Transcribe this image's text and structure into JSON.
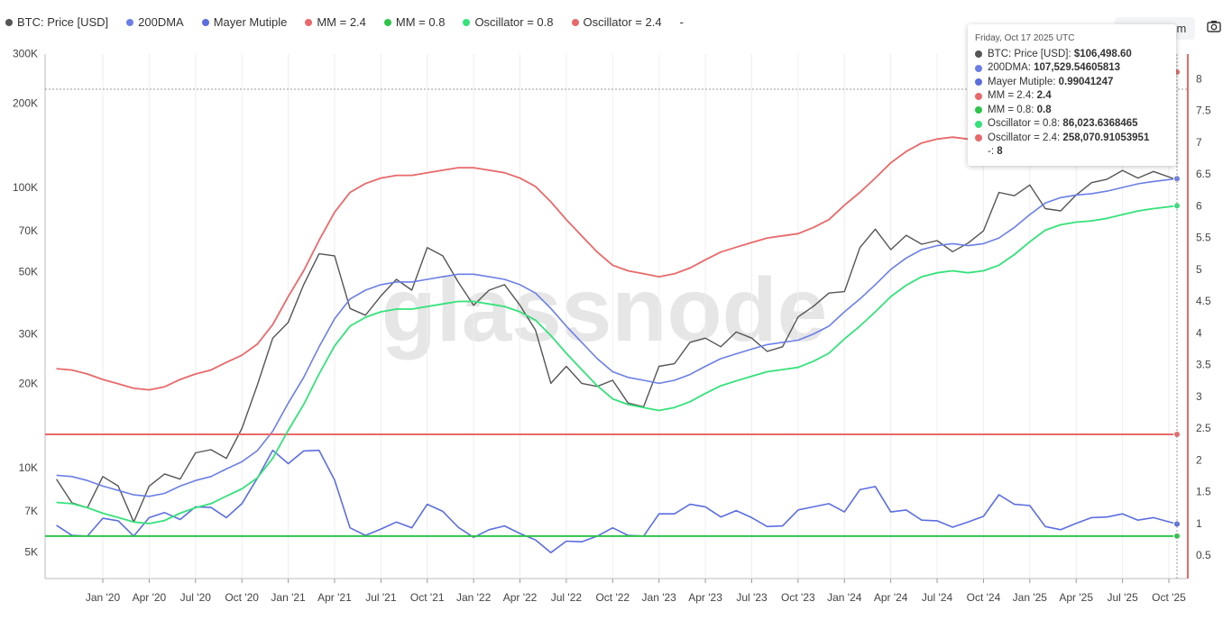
{
  "toolbar": {
    "reset_zoom": "Reset zoom",
    "camera_icon": "camera-icon"
  },
  "watermark": "glassnode",
  "legend": [
    {
      "label": "BTC: Price [USD]",
      "color": "#555555"
    },
    {
      "label": "200DMA",
      "color": "#6b7fe6"
    },
    {
      "label": "Mayer Mutiple",
      "color": "#5b6ee0"
    },
    {
      "label": "MM = 2.4",
      "color": "#e8696a"
    },
    {
      "label": "MM = 0.8",
      "color": "#2ec44a"
    },
    {
      "label": "Oscillator = 0.8",
      "color": "#34e27a"
    },
    {
      "label": "Oscillator = 2.4",
      "color": "#e8696a"
    },
    {
      "label": "-",
      "color": "#ffffff"
    }
  ],
  "tooltip": {
    "date": "Friday, Oct 17 2025 UTC",
    "rows": [
      {
        "label": "BTC: Price [USD]: ",
        "value": "$106,498.60",
        "color": "#555555"
      },
      {
        "label": "200DMA: ",
        "value": "107,529.54605813",
        "color": "#6b7fe6"
      },
      {
        "label": "Mayer Mutiple: ",
        "value": "0.99041247",
        "color": "#5b6ee0"
      },
      {
        "label": "MM = 2.4: ",
        "value": "2.4",
        "color": "#e8696a"
      },
      {
        "label": "MM = 0.8: ",
        "value": "0.8",
        "color": "#2ec44a"
      },
      {
        "label": "Oscillator = 0.8: ",
        "value": "86,023.6368465",
        "color": "#34e27a"
      },
      {
        "label": "Oscillator = 2.4: ",
        "value": "258,070.91053951",
        "color": "#e8696a"
      },
      {
        "label": "-: ",
        "value": "8",
        "color": null
      }
    ]
  },
  "chart_data": {
    "type": "line",
    "left_axis": {
      "scale": "log",
      "ticks": [
        "5K",
        "7K",
        "10K",
        "20K",
        "30K",
        "50K",
        "70K",
        "100K",
        "200K",
        "300K"
      ],
      "tick_values": [
        5000,
        7000,
        10000,
        20000,
        30000,
        50000,
        70000,
        100000,
        200000,
        300000
      ],
      "range": [
        4500,
        300000
      ]
    },
    "right_axis": {
      "scale": "linear",
      "ticks": [
        "0.5",
        "1",
        "1.5",
        "2",
        "2.5",
        "3",
        "3.5",
        "4",
        "4.5",
        "5",
        "5.5",
        "6",
        "6.5",
        "7",
        "7.5",
        "8"
      ],
      "range": [
        0.3,
        8.4
      ]
    },
    "x_ticks": [
      [
        "Jan '20",
        "2020-01"
      ],
      [
        "Apr '20",
        "2020-04"
      ],
      [
        "Jul '20",
        "2020-07"
      ],
      [
        "Oct '20",
        "2020-10"
      ],
      [
        "Jan '21",
        "2021-01"
      ],
      [
        "Apr '21",
        "2021-04"
      ],
      [
        "Jul '21",
        "2021-07"
      ],
      [
        "Oct '21",
        "2021-10"
      ],
      [
        "Jan '22",
        "2022-01"
      ],
      [
        "Apr '22",
        "2022-04"
      ],
      [
        "Jul '22",
        "2022-07"
      ],
      [
        "Oct '22",
        "2022-10"
      ],
      [
        "Jan '23",
        "2023-01"
      ],
      [
        "Apr '23",
        "2023-04"
      ],
      [
        "Jul '23",
        "2023-07"
      ],
      [
        "Oct '23",
        "2023-10"
      ],
      [
        "Jan '24",
        "2024-01"
      ],
      [
        "Apr '24",
        "2024-04"
      ],
      [
        "Jul '24",
        "2024-07"
      ],
      [
        "Oct '24",
        "2024-10"
      ],
      [
        "Jan '25",
        "2025-01"
      ],
      [
        "Apr '25",
        "2025-04"
      ],
      [
        "Jul '25",
        "2025-07"
      ],
      [
        "Oct '25",
        "2025-10"
      ]
    ],
    "x_start": "2019-10",
    "series": [
      {
        "name": "BTC: Price [USD]",
        "axis": "left",
        "color": "#555555",
        "values": [
          9100,
          7500,
          7200,
          9300,
          8600,
          6400,
          8600,
          9500,
          9100,
          11300,
          11600,
          10800,
          13800,
          19700,
          29000,
          33000,
          45000,
          58000,
          57000,
          37000,
          35000,
          41000,
          47000,
          43000,
          61000,
          57000,
          46000,
          38000,
          43000,
          45000,
          38000,
          31000,
          20000,
          23000,
          20000,
          19500,
          20500,
          17000,
          16500,
          23000,
          23500,
          28000,
          29000,
          27000,
          30500,
          29000,
          26000,
          27000,
          34500,
          37700,
          42000,
          42500,
          61000,
          71000,
          60000,
          67500,
          62700,
          64600,
          59000,
          63300,
          70000,
          96000,
          93400,
          102000,
          84000,
          82500,
          94000,
          104000,
          107000,
          115000,
          108000,
          114000,
          106498.6
        ]
      },
      {
        "name": "200DMA",
        "axis": "left",
        "color": "#6b7fe6",
        "values": [
          9400,
          9300,
          9000,
          8600,
          8300,
          8000,
          7900,
          8100,
          8600,
          9000,
          9300,
          9900,
          10500,
          11500,
          13500,
          17000,
          21000,
          27000,
          34000,
          40000,
          43000,
          45000,
          46000,
          46000,
          47000,
          48000,
          49000,
          49000,
          48000,
          47000,
          45000,
          42000,
          37000,
          32000,
          28000,
          24500,
          22000,
          21000,
          20500,
          20000,
          20500,
          21500,
          23000,
          24500,
          25500,
          26500,
          27500,
          28000,
          28500,
          30000,
          32000,
          36000,
          40000,
          45000,
          51000,
          56000,
          60000,
          62000,
          63000,
          62000,
          63000,
          66000,
          72000,
          80000,
          88000,
          92000,
          94000,
          95000,
          97000,
          100000,
          103000,
          105000,
          107529.55
        ]
      },
      {
        "name": "Mayer Mutiple",
        "axis": "right",
        "color": "#5b6ee0",
        "values": [
          0.97,
          0.81,
          0.8,
          1.08,
          1.04,
          0.8,
          1.09,
          1.17,
          1.06,
          1.26,
          1.25,
          1.09,
          1.31,
          1.71,
          2.15,
          1.94,
          2.14,
          2.15,
          1.68,
          0.93,
          0.81,
          0.91,
          1.02,
          0.93,
          1.3,
          1.19,
          0.94,
          0.78,
          0.9,
          0.96,
          0.84,
          0.74,
          0.54,
          0.72,
          0.71,
          0.8,
          0.93,
          0.81,
          0.8,
          1.15,
          1.15,
          1.3,
          1.26,
          1.1,
          1.2,
          1.09,
          0.95,
          0.96,
          1.21,
          1.26,
          1.31,
          1.18,
          1.53,
          1.58,
          1.18,
          1.21,
          1.05,
          1.04,
          0.94,
          1.02,
          1.11,
          1.45,
          1.3,
          1.28,
          0.95,
          0.9,
          1.0,
          1.09,
          1.1,
          1.15,
          1.05,
          1.09,
          0.99
        ]
      },
      {
        "name": "MM = 2.4",
        "axis": "right",
        "color": "#e8696a",
        "constant": 2.4
      },
      {
        "name": "MM = 0.8",
        "axis": "right",
        "color": "#2ec44a",
        "constant": 0.8
      },
      {
        "name": "Oscillator = 0.8",
        "axis": "left",
        "color": "#34e27a",
        "multiple_of": "200DMA",
        "factor": 0.8
      },
      {
        "name": "Oscillator = 2.4",
        "axis": "left",
        "color": "#e8696a",
        "multiple_of": "200DMA",
        "factor": 2.4
      }
    ],
    "crosshair_date": "2025-10-17"
  }
}
